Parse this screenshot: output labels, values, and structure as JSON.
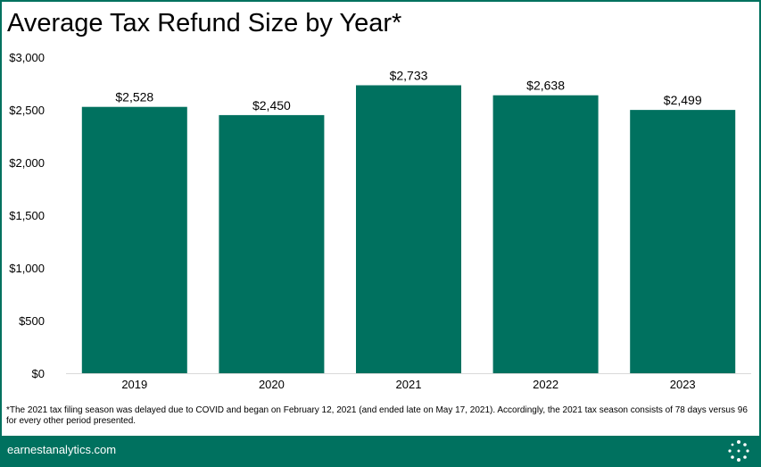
{
  "title": "Average Tax Refund Size by Year*",
  "footnote": "*The 2021 tax filing season was delayed due to COVID and began on February 12, 2021 (and ended late on May 17, 2021). Accordingly, the 2021 tax season consists of 78 days versus 96 for every other period presented.",
  "footer": {
    "site": "earnestanalytics.com",
    "logo_icon": "dotted-circle-logo-icon"
  },
  "colors": {
    "bar": "#00715f",
    "border": "#00715f",
    "text": "#000000"
  },
  "chart_data": {
    "type": "bar",
    "categories": [
      "2019",
      "2020",
      "2021",
      "2022",
      "2023"
    ],
    "values": [
      2528,
      2450,
      2733,
      2638,
      2499
    ],
    "data_labels": [
      "$2,528",
      "$2,450",
      "$2,733",
      "$2,638",
      "$2,499"
    ],
    "ylim": [
      0,
      3000
    ],
    "yticks": [
      0,
      500,
      1000,
      1500,
      2000,
      2500,
      3000
    ],
    "ytick_labels": [
      "$0",
      "$500",
      "$1,000",
      "$1,500",
      "$2,000",
      "$2,500",
      "$3,000"
    ],
    "grid": false,
    "legend": "none",
    "title": "Average Tax Refund Size by Year*",
    "xlabel": "",
    "ylabel": ""
  }
}
